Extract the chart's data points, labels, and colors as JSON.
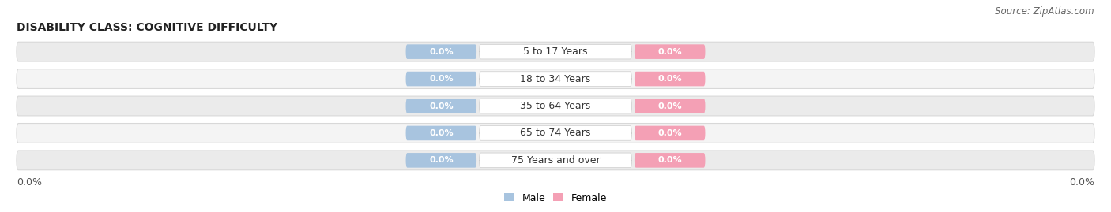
{
  "title": "DISABILITY CLASS: COGNITIVE DIFFICULTY",
  "source": "Source: ZipAtlas.com",
  "categories": [
    "5 to 17 Years",
    "18 to 34 Years",
    "35 to 64 Years",
    "65 to 74 Years",
    "75 Years and over"
  ],
  "male_values": [
    "0.0%",
    "0.0%",
    "0.0%",
    "0.0%",
    "0.0%"
  ],
  "female_values": [
    "0.0%",
    "0.0%",
    "0.0%",
    "0.0%",
    "0.0%"
  ],
  "male_color": "#a8c4df",
  "female_color": "#f4a0b5",
  "male_label": "Male",
  "female_label": "Female",
  "row_colors": [
    "#ebebeb",
    "#f4f4f4",
    "#ebebeb",
    "#f4f4f4",
    "#ebebeb"
  ],
  "title_fontsize": 10,
  "source_fontsize": 8.5,
  "cat_fontsize": 9,
  "val_fontsize": 8,
  "tick_fontsize": 9,
  "left_axis_label": "0.0%",
  "right_axis_label": "0.0%",
  "background_color": "#ffffff"
}
